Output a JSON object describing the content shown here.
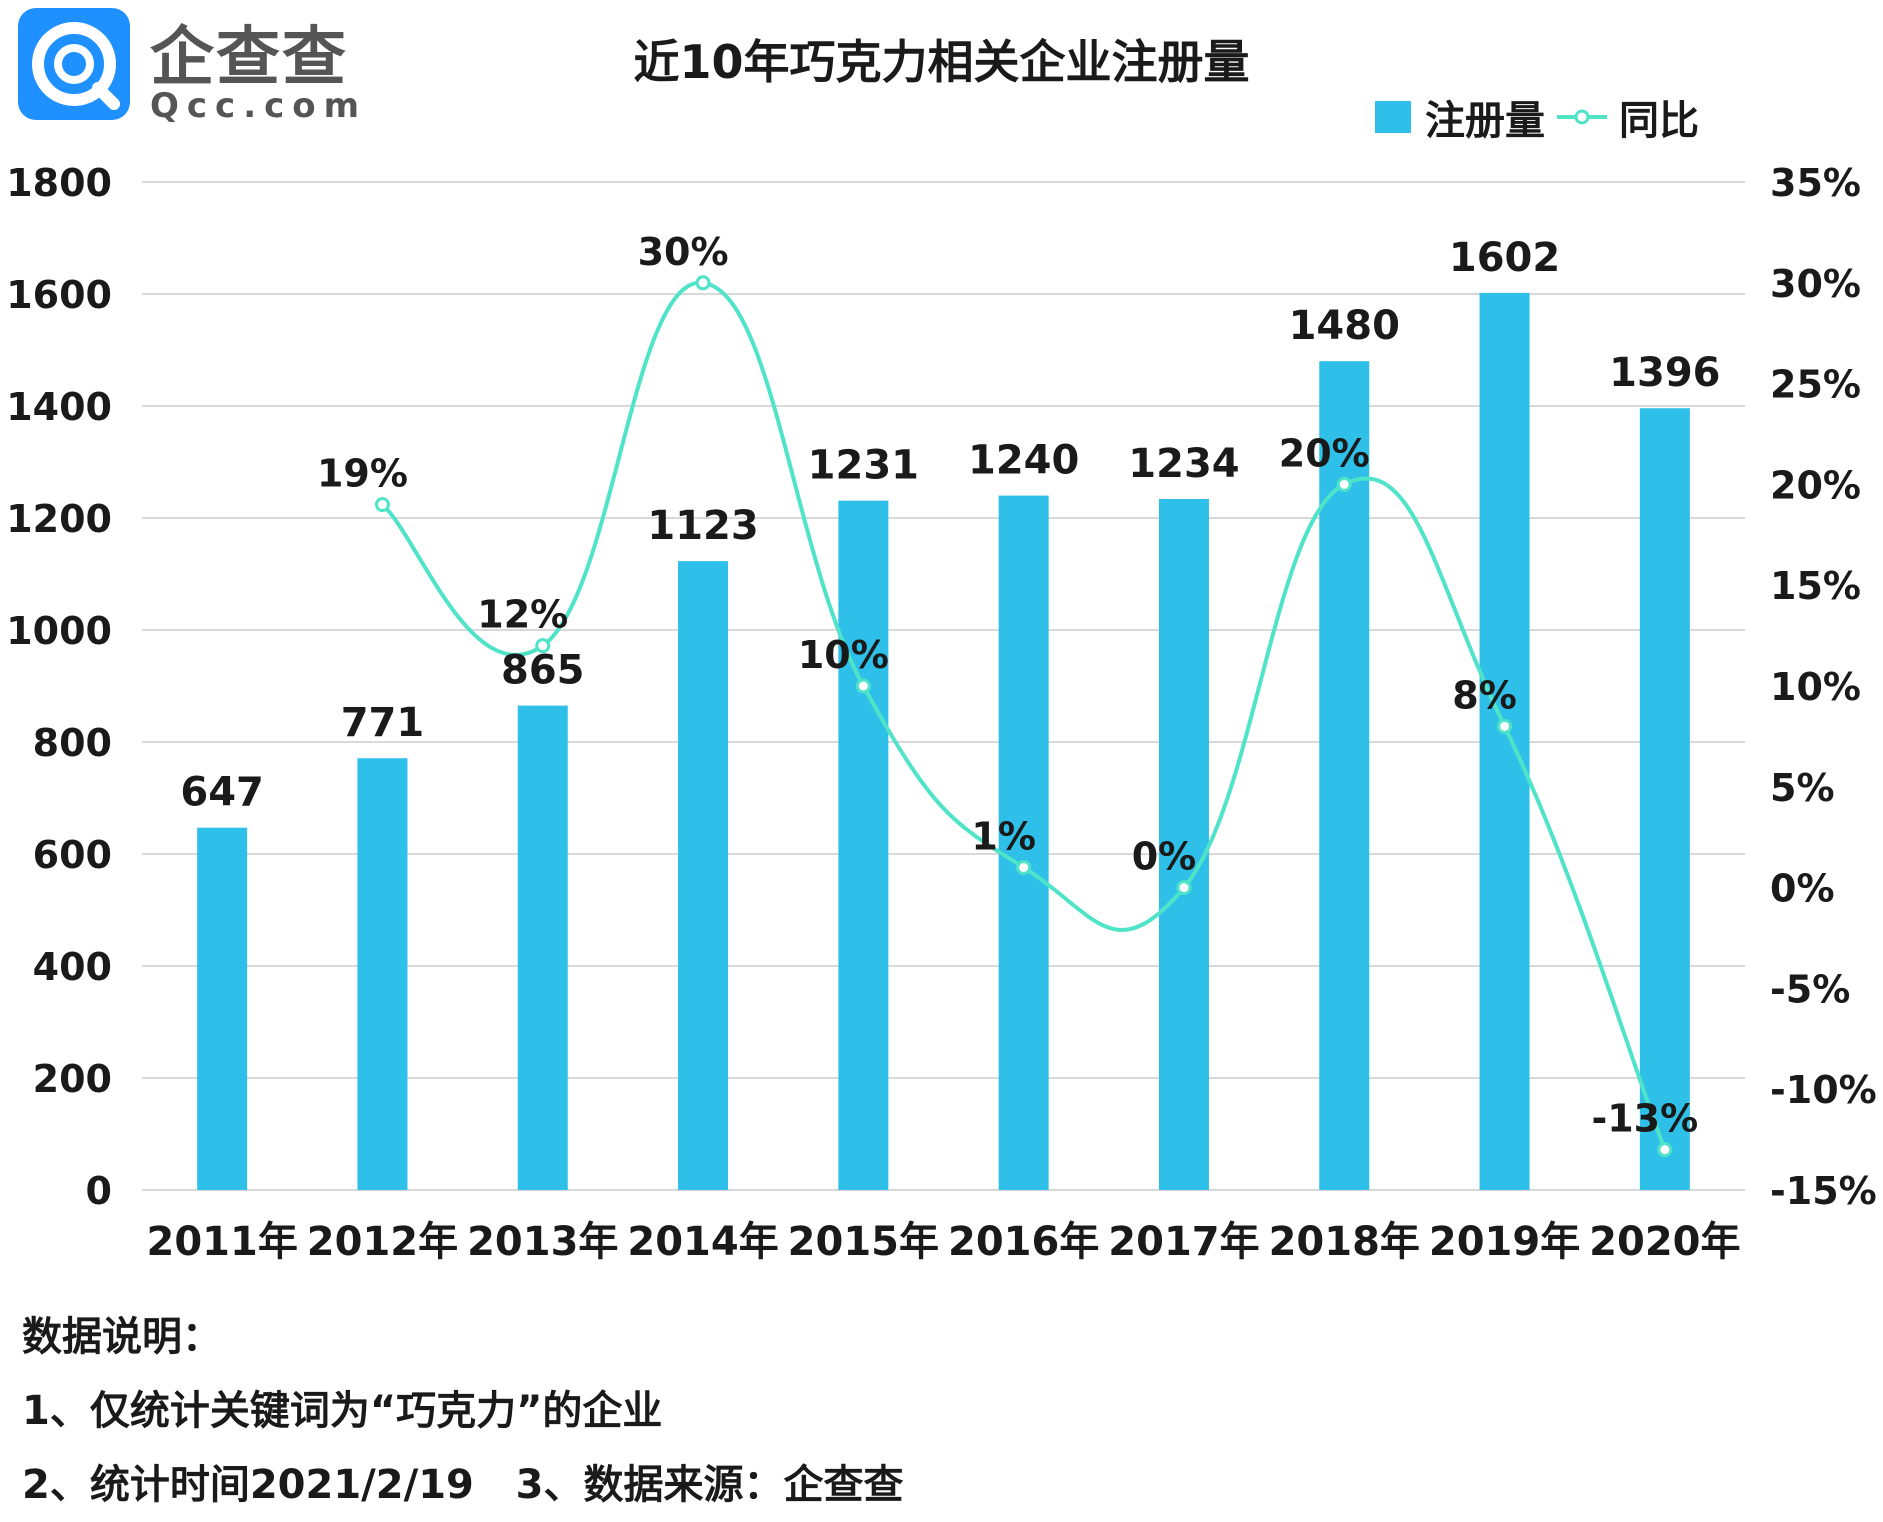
{
  "logo": {
    "cn": "企查查",
    "en": "Qcc.com",
    "icon": "qcc-logo-icon"
  },
  "colors": {
    "bar": "#2ec0e8",
    "line": "#4fe3c8",
    "grid": "#d9d9d9"
  },
  "legend": {
    "bar_label": "注册量",
    "line_label": "同比"
  },
  "chart_data": {
    "type": "bar",
    "title": "近10年巧克力相关企业注册量",
    "categories": [
      "2011年",
      "2012年",
      "2013年",
      "2014年",
      "2015年",
      "2016年",
      "2017年",
      "2018年",
      "2019年",
      "2020年"
    ],
    "series": [
      {
        "name": "注册量",
        "type": "bar",
        "axis": "left",
        "values": [
          647,
          771,
          865,
          1123,
          1231,
          1240,
          1234,
          1480,
          1602,
          1396
        ],
        "labels": [
          "647",
          "771",
          "865",
          "1123",
          "1231",
          "1240",
          "1234",
          "1480",
          "1602",
          "1396"
        ]
      },
      {
        "name": "同比",
        "type": "line",
        "axis": "right",
        "values": [
          null,
          19,
          12,
          30,
          10,
          1,
          0,
          20,
          8,
          -13
        ],
        "labels": [
          null,
          "19%",
          "12%",
          "30%",
          "10%",
          "1%",
          "0%",
          "20%",
          "8%",
          "-13%"
        ]
      }
    ],
    "left_axis": {
      "ylim": [
        0,
        1800
      ],
      "ticks": [
        0,
        200,
        400,
        600,
        800,
        1000,
        1200,
        1400,
        1600,
        1800
      ],
      "tick_labels": [
        "0",
        "200",
        "400",
        "600",
        "800",
        "1000",
        "1200",
        "1400",
        "1600",
        "1800"
      ]
    },
    "right_axis": {
      "ylim": [
        -15,
        35
      ],
      "ticks": [
        -15,
        -10,
        -5,
        0,
        5,
        10,
        15,
        20,
        25,
        30,
        35
      ],
      "tick_labels": [
        "-15%",
        "-10%",
        "-5%",
        "0%",
        "5%",
        "10%",
        "15%",
        "20%",
        "25%",
        "30%",
        "35%"
      ]
    },
    "grid": true,
    "legend_position": "top-right"
  },
  "notes": {
    "heading": "数据说明：",
    "line1": "1、仅统计关键词为“巧克力”的企业",
    "line2": "2、统计时间2021/2/19   3、数据来源：企查查"
  }
}
